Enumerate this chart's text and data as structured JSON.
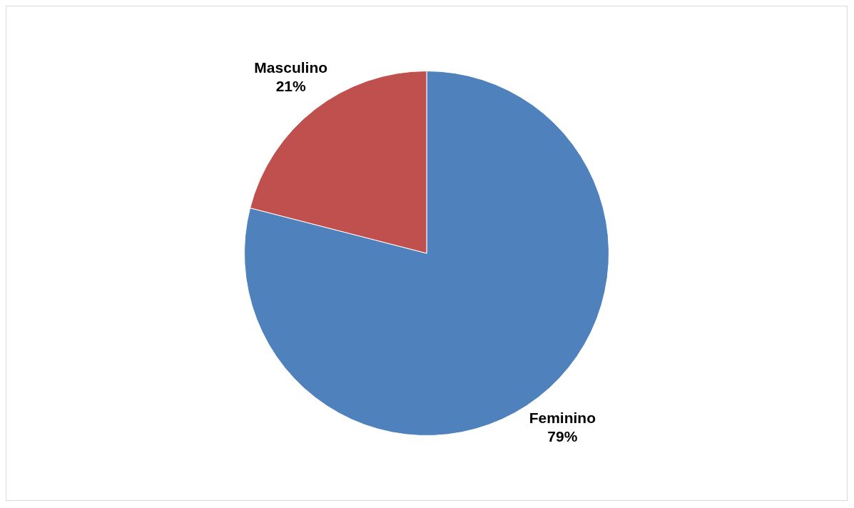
{
  "chart_data": {
    "type": "pie",
    "categories": [
      "Feminino",
      "Masculino"
    ],
    "values": [
      79,
      21
    ],
    "colors": [
      "#4f81bd",
      "#c0504d"
    ],
    "value_labels": [
      "79%",
      "21%"
    ],
    "legend": false
  }
}
